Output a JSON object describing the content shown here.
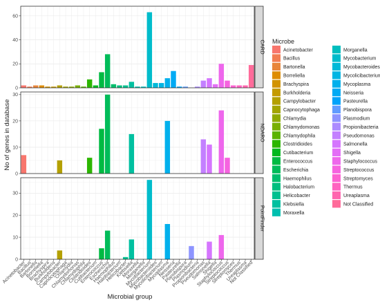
{
  "chart_data": {
    "type": "bar",
    "xlabel": "Microbial group",
    "ylabel": "No of genes in database",
    "legend_title": "Microbe",
    "legend_position": "right",
    "grid": true,
    "categories": [
      "Acinetobacter",
      "Bacillus",
      "Bartonella",
      "Borreliella",
      "Brachyspira",
      "Burkholderia",
      "Campylobacter",
      "Capnocytophaga",
      "Chlamydia",
      "Chlamydomonas",
      "Chlamydophila",
      "Clostridioides",
      "Cutibacterium",
      "Enterococcus",
      "Escherichia",
      "Haemophilus",
      "Halobacterium",
      "Helicobacter",
      "Klebsiella",
      "Moraxella",
      "Morganella",
      "Mycobacterium",
      "Mycobacteroides",
      "Mycolicibacterium",
      "Mycoplasma",
      "Neisseria",
      "Pasteurella",
      "Planobispora",
      "Plasmodium",
      "Propionibacteria",
      "Pseudomonas",
      "Salmonella",
      "Shigella",
      "Staphylococcus",
      "Streptococcus",
      "Streptomyces",
      "Thermus",
      "Ureaplasma",
      "Not Classified"
    ],
    "colors": [
      "#F8766D",
      "#F27D52",
      "#E8853A",
      "#DE8C00",
      "#D29300",
      "#C49A00",
      "#B4A000",
      "#A3A500",
      "#8FAA00",
      "#78AF00",
      "#5BB300",
      "#2CB600",
      "#00B81F",
      "#00BA42",
      "#00BC59",
      "#00BE6D",
      "#00BF7F",
      "#00C090",
      "#00C0A0",
      "#00BFAF",
      "#00BEBE",
      "#00BCCB",
      "#00B9D8",
      "#00B5E3",
      "#00B0EC",
      "#00AAF4",
      "#00A3FA",
      "#619CFF",
      "#8D94FF",
      "#AC8BFF",
      "#C380FF",
      "#D575FE",
      "#E36EF6",
      "#EE67EC",
      "#F663DF",
      "#FC62D1",
      "#FF63C0",
      "#FF66AE",
      "#FF6B9A"
    ],
    "facets": [
      {
        "name": "CARD",
        "ylim": [
          0,
          68
        ],
        "yticks": [
          0,
          20,
          40,
          60
        ],
        "values": [
          2,
          1,
          2,
          2,
          1,
          1,
          2,
          1,
          1,
          2,
          1,
          7,
          2,
          13,
          28,
          3,
          2,
          2,
          5,
          1,
          1,
          63,
          4,
          4,
          8,
          14,
          1,
          1,
          0,
          1,
          6,
          8,
          3,
          20,
          6,
          2,
          2,
          2,
          19
        ]
      },
      {
        "name": "NDARO",
        "ylim": [
          0,
          31
        ],
        "yticks": [
          0,
          10,
          20,
          30
        ],
        "values": [
          7,
          0,
          0,
          0,
          0,
          0,
          5,
          0,
          0,
          0,
          0,
          6,
          0,
          17,
          30,
          0,
          0,
          0,
          15,
          0,
          0,
          0,
          0,
          0,
          20,
          0,
          0,
          0,
          0,
          0,
          13,
          11,
          0,
          24,
          6,
          0,
          0,
          0,
          0
        ]
      },
      {
        "name": "PointFinder",
        "ylim": [
          0,
          37
        ],
        "yticks": [
          0,
          10,
          20,
          30
        ],
        "values": [
          0,
          0,
          0,
          0,
          0,
          0,
          4,
          0,
          0,
          0,
          0,
          0,
          0,
          5,
          13,
          0,
          0,
          1,
          9,
          0,
          0,
          36,
          0,
          0,
          16,
          0,
          0,
          0,
          6,
          0,
          0,
          8,
          0,
          11,
          0,
          0,
          0,
          0,
          0
        ]
      }
    ]
  }
}
